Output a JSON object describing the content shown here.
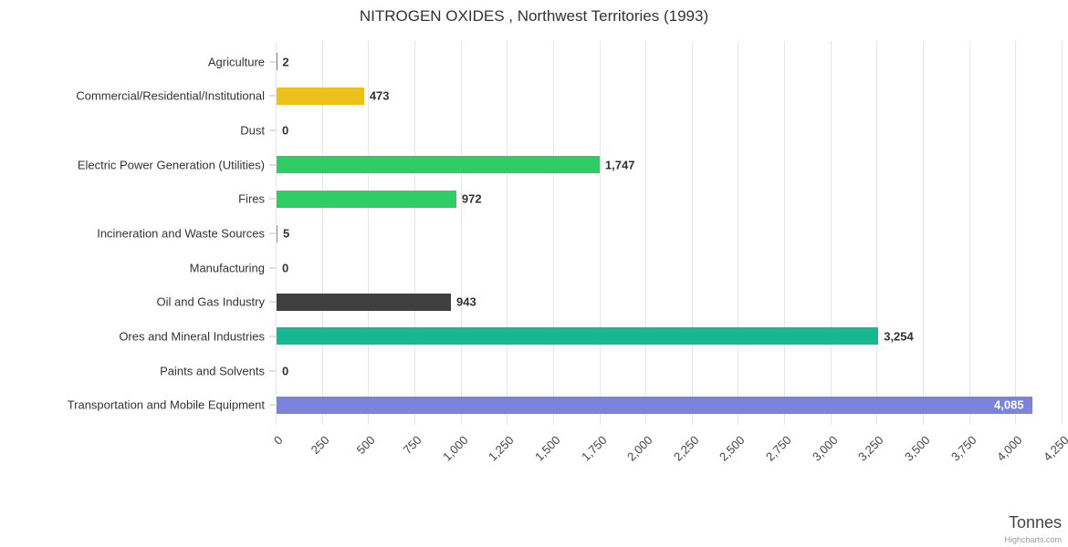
{
  "credit": "Highcharts.com",
  "chart_data": {
    "type": "bar",
    "orientation": "horizontal",
    "title": "NITROGEN OXIDES , Northwest Territories (1993)",
    "xlabel": "Tonnes",
    "xlim": [
      0,
      4250
    ],
    "tick_interval": 250,
    "grid": true,
    "legend": "none",
    "categories": [
      "Agriculture",
      "Commercial/Residential/Institutional",
      "Dust",
      "Electric Power Generation (Utilities)",
      "Fires",
      "Incineration and Waste Sources",
      "Manufacturing",
      "Oil and Gas Industry",
      "Ores and Mineral Industries",
      "Paints and Solvents",
      "Transportation and Mobile Equipment"
    ],
    "values": [
      2,
      473,
      0,
      1747,
      972,
      5,
      0,
      943,
      3254,
      0,
      4085
    ],
    "value_labels": [
      "2",
      "473",
      "0",
      "1,747",
      "972",
      "5",
      "0",
      "943",
      "3,254",
      "0",
      "4,085"
    ],
    "bar_colors": [
      "#17b890",
      "#ecc11c",
      "#cccccc",
      "#30cc65",
      "#30cc65",
      "#30cc65",
      "#cccccc",
      "#3f3f3f",
      "#17b890",
      "#cccccc",
      "#7b83de"
    ],
    "x_tick_labels": [
      "0",
      "250",
      "500",
      "750",
      "1,000",
      "1,250",
      "1,500",
      "1,750",
      "2,000",
      "2,250",
      "2,500",
      "2,750",
      "3,000",
      "3,250",
      "3,500",
      "3,750",
      "4,000",
      "4,250"
    ],
    "gridline_color": "#e6e6e6",
    "data_label_color": "#333333",
    "inside_label_color": "#ffffff"
  }
}
